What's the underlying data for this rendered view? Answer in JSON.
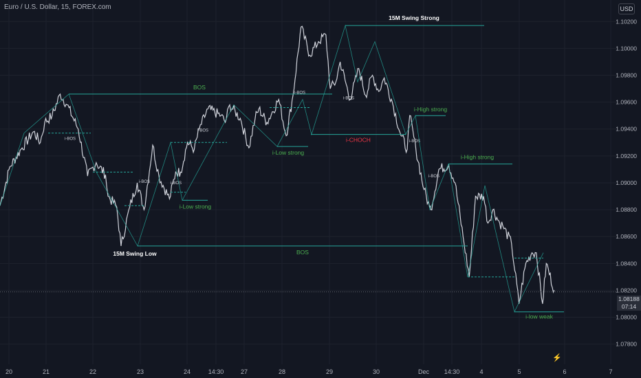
{
  "header": {
    "symbol_title": "Euro / U.S. Dollar, 15, FOREX.com",
    "currency_button": "USD"
  },
  "price_scale": {
    "current_price": "1.08188",
    "countdown": "07:14"
  },
  "icons": {
    "logo": "tradingview-logo-icon"
  },
  "chart_data": {
    "type": "line",
    "title": "Euro / U.S. Dollar, 15, FOREX.com",
    "xlabel": "",
    "ylabel": "",
    "ylim": [
      1.0765,
      1.1036
    ],
    "grid": true,
    "y_ticks": [
      "1.10200",
      "1.10000",
      "1.09800",
      "1.09600",
      "1.09400",
      "1.09200",
      "1.09000",
      "1.08800",
      "1.08600",
      "1.08400",
      "1.08200",
      "1.08000",
      "1.07800"
    ],
    "x_ticks": [
      "20",
      "21",
      "22",
      "23",
      "24",
      "14:30",
      "27",
      "28",
      "29",
      "30",
      "Dec",
      "14:30",
      "4",
      "5",
      "6",
      "7"
    ],
    "series": [
      {
        "x": [
          0,
          1.6,
          3.4,
          5.4,
          6.5,
          7.2,
          8.4,
          9.7,
          10.8,
          12.6,
          14.1,
          15.5,
          17.0,
          17.4,
          18.8,
          19.5,
          20.9,
          22.1,
          23.2,
          24.6,
          25.6,
          27.3,
          28.3,
          29.1,
          30.2,
          31.3,
          32.1,
          33.5,
          35.6,
          36.3,
          37.0,
          38.7,
          40.1,
          41.1,
          41.7,
          43.0,
          44.9,
          46.1,
          47.2,
          48.5,
          49.9,
          51.3,
          52.5,
          53.2,
          54.1,
          54.8,
          56.4,
          57.8,
          58.9,
          60.0,
          61.0,
          61.9,
          63.2,
          64.6,
          65.6,
          66.0,
          67.0,
          68.3,
          69.2,
          69.4,
          70.7,
          72.3,
          73.3,
          74.6,
          75.6,
          76.6,
          77.9,
          78.6,
          79.4,
          80.5,
          81.0,
          82.4,
          83.6,
          84.7,
          85.7,
          86.4,
          87.4,
          88.0,
          89.3
        ],
        "y": [
          1.0883,
          1.0912,
          1.0925,
          1.0938,
          1.093,
          1.0945,
          1.095,
          1.0966,
          1.0958,
          1.094,
          1.0905,
          1.0915,
          1.0906,
          1.089,
          1.0882,
          1.0853,
          1.0882,
          1.09,
          1.088,
          1.0928,
          1.0905,
          1.0888,
          1.0908,
          1.0908,
          1.093,
          1.0925,
          1.094,
          1.0955,
          1.095,
          1.0945,
          1.0958,
          1.0948,
          1.0926,
          1.0948,
          1.0955,
          1.0945,
          1.0962,
          1.0935,
          1.0965,
          1.1016,
          1.0995,
          1.1005,
          1.101,
          1.097,
          1.0975,
          1.099,
          1.0962,
          1.0985,
          1.0965,
          1.098,
          1.0968,
          1.0978,
          1.096,
          1.0935,
          1.0925,
          1.095,
          1.0925,
          1.0895,
          1.0882,
          1.088,
          1.091,
          1.0913,
          1.09,
          1.086,
          1.083,
          1.089,
          1.089,
          1.087,
          1.088,
          1.087,
          1.0868,
          1.0855,
          1.081,
          1.084,
          1.0848,
          1.0848,
          1.081,
          1.084,
          1.082
        ]
      }
    ],
    "annotations": [
      {
        "text": "15M Swing Strong",
        "price": 1.1017,
        "color": "#ffffff"
      },
      {
        "text": "BOS",
        "price": 1.0966,
        "color": "#4caf50"
      },
      {
        "text": "i-BOS",
        "price": 1.0937,
        "color": "#d1d4dc"
      },
      {
        "text": "i-BOS",
        "price": 1.0908,
        "color": "#d1d4dc"
      },
      {
        "text": "i-BOS",
        "price": 1.093,
        "color": "#d1d4dc"
      },
      {
        "text": "i-BOS",
        "price": 1.0908,
        "color": "#d1d4dc"
      },
      {
        "text": "i-BOS",
        "price": 1.0955,
        "color": "#d1d4dc"
      },
      {
        "text": "i-BOS",
        "price": 1.0966,
        "color": "#d1d4dc"
      },
      {
        "text": "i-Low strong",
        "price": 1.0887,
        "color": "#4caf50"
      },
      {
        "text": "i-Low strong",
        "price": 1.0927,
        "color": "#4caf50"
      },
      {
        "text": "i-CHOCH",
        "price": 1.0936,
        "color": "#f23645"
      },
      {
        "text": "i-High strong",
        "price": 1.095,
        "color": "#4caf50"
      },
      {
        "text": "i-High strong",
        "price": 1.0914,
        "color": "#4caf50"
      },
      {
        "text": "i-BOS",
        "price": 1.0928,
        "color": "#d1d4dc"
      },
      {
        "text": "i-BOS",
        "price": 1.09,
        "color": "#d1d4dc"
      },
      {
        "text": "15M Swing Low",
        "price": 1.0853,
        "color": "#ffffff"
      },
      {
        "text": "BOS",
        "price": 1.0853,
        "color": "#4caf50"
      },
      {
        "text": "i-low weak",
        "price": 1.0804,
        "color": "#4caf50"
      }
    ]
  }
}
